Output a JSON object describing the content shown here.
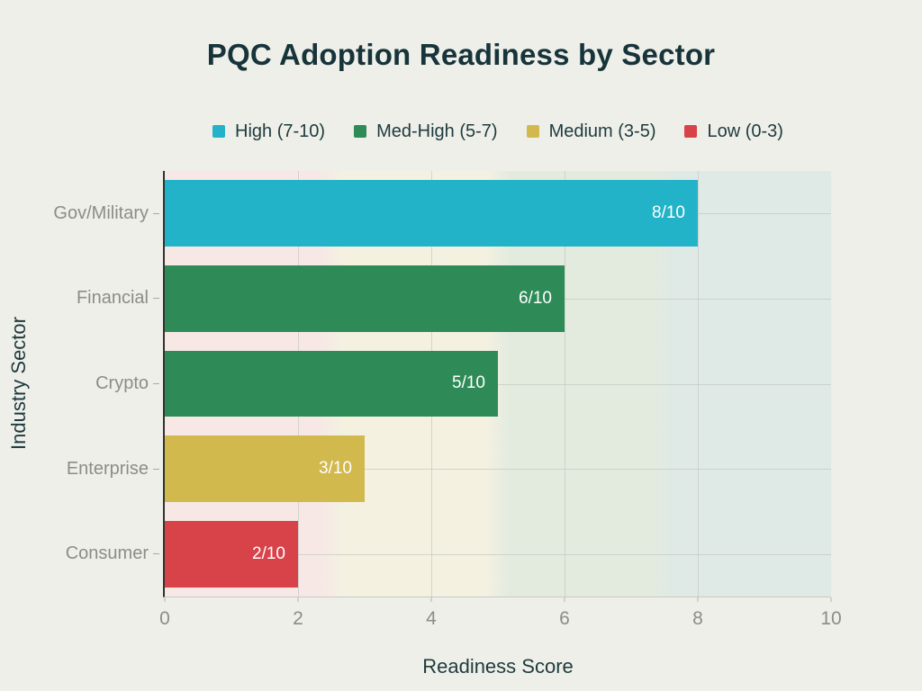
{
  "page": {
    "background_color": "#efefe9"
  },
  "colors": {
    "title_text": "#16343a",
    "axis_title_text": "#1d3a3e",
    "tick_label_text": "#8d8d86",
    "gridline": "#c5cac6",
    "axis_line": "#33332f",
    "bar_value_text": "#ffffff"
  },
  "chart_data": {
    "type": "bar",
    "orientation": "horizontal",
    "title": "PQC Adoption Readiness by Sector",
    "xlabel": "Readiness Score",
    "ylabel": "Industry Sector",
    "xlim": [
      0,
      10
    ],
    "xticks": [
      0,
      2,
      4,
      6,
      8,
      10
    ],
    "grid": true,
    "categories": [
      "Gov/Military",
      "Financial",
      "Crypto",
      "Enterprise",
      "Consumer"
    ],
    "values": [
      8,
      6,
      5,
      3,
      2
    ],
    "bar_labels": [
      "8/10",
      "6/10",
      "5/10",
      "3/10",
      "2/10"
    ],
    "bar_colors": [
      "#22b3c9",
      "#2e8b57",
      "#2e8b57",
      "#d1b94e",
      "#d8434a"
    ],
    "legend": {
      "position": "top",
      "entries": [
        {
          "label": "High (7-10)",
          "color": "#22b3c9"
        },
        {
          "label": "Med-High (5-7)",
          "color": "#2e8b57"
        },
        {
          "label": "Medium (3-5)",
          "color": "#d1b94e"
        },
        {
          "label": "Low (0-3)",
          "color": "#d8434a"
        }
      ]
    },
    "background_bands": [
      {
        "from": 0,
        "to": 2.5,
        "color": "#f7e8e6"
      },
      {
        "from": 2.5,
        "to": 5,
        "color": "#f4f1e1"
      },
      {
        "from": 5,
        "to": 7.5,
        "color": "#e3ebdf"
      },
      {
        "from": 7.5,
        "to": 10,
        "color": "#dfe9e6"
      }
    ]
  }
}
